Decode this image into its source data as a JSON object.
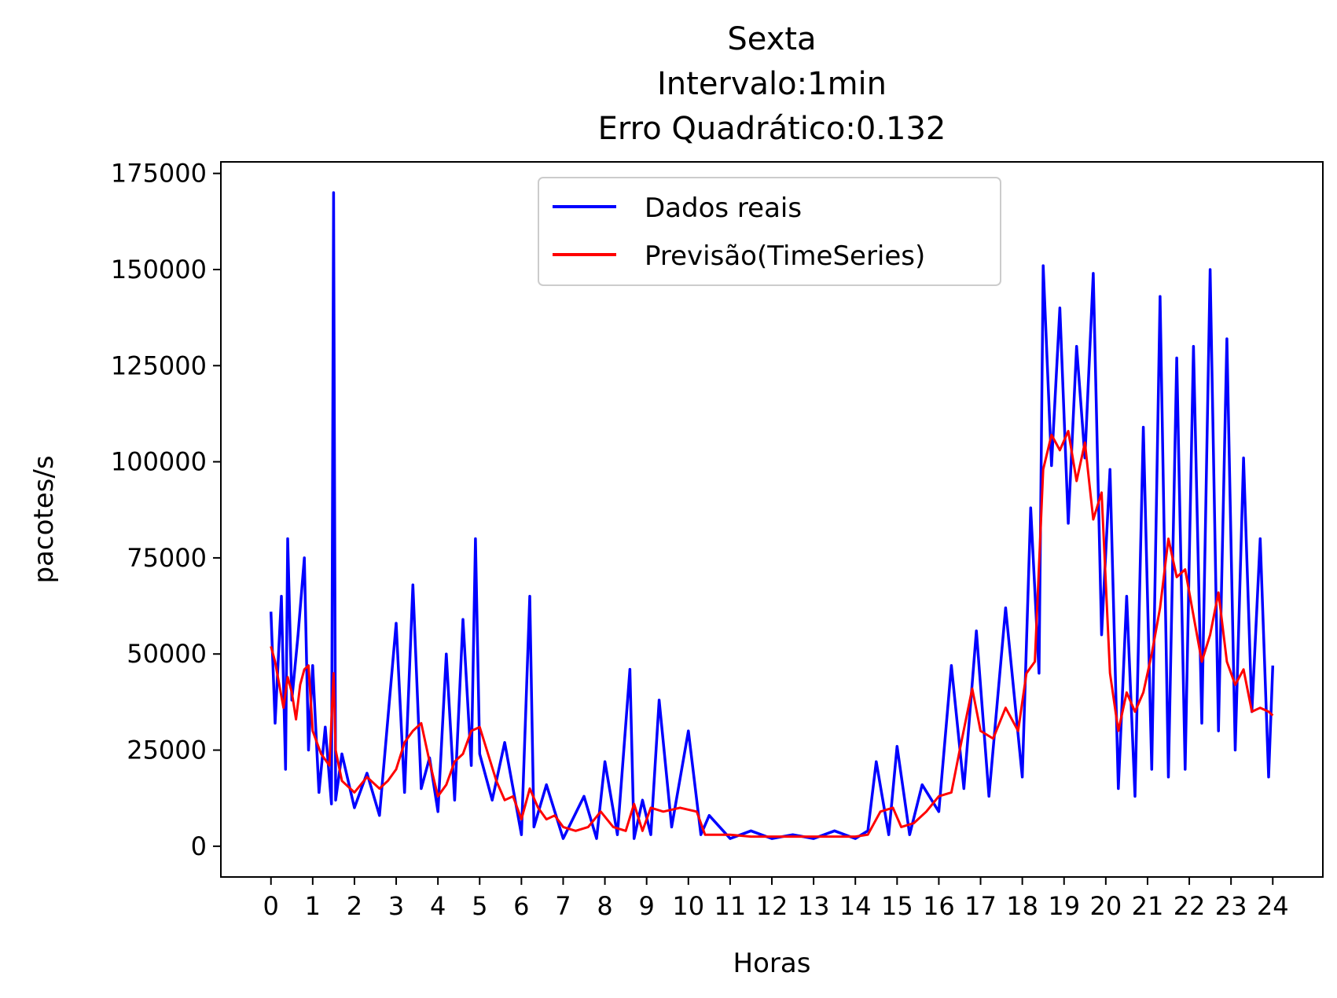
{
  "chart_data": {
    "type": "line",
    "title_lines": [
      "Sexta",
      "Intervalo:1min",
      "Erro Quadrático:0.132"
    ],
    "xlabel": "Horas",
    "ylabel": "pacotes/s",
    "xlim": [
      -1.2,
      25.2
    ],
    "ylim": [
      -8000,
      178000
    ],
    "x_ticks": [
      "0",
      "1",
      "2",
      "3",
      "4",
      "5",
      "6",
      "7",
      "8",
      "9",
      "10",
      "11",
      "12",
      "13",
      "14",
      "15",
      "16",
      "17",
      "18",
      "19",
      "20",
      "21",
      "22",
      "23",
      "24"
    ],
    "y_ticks": [
      0,
      25000,
      50000,
      75000,
      100000,
      125000,
      150000,
      175000
    ],
    "y_tick_labels": [
      "0",
      "25000",
      "50000",
      "75000",
      "100000",
      "125000",
      "150000",
      "175000"
    ],
    "grid": false,
    "legend_position": "top-center",
    "series": [
      {
        "name": "Dados reais",
        "color": "#0000ff",
        "x": [
          0,
          0.1,
          0.25,
          0.35,
          0.4,
          0.5,
          0.65,
          0.8,
          0.9,
          1.0,
          1.15,
          1.3,
          1.45,
          1.5,
          1.55,
          1.7,
          2.0,
          2.3,
          2.6,
          3.0,
          3.2,
          3.4,
          3.6,
          3.8,
          4.0,
          4.2,
          4.4,
          4.6,
          4.8,
          4.9,
          5.0,
          5.3,
          5.6,
          6.0,
          6.2,
          6.3,
          6.6,
          7.0,
          7.5,
          7.8,
          8.0,
          8.3,
          8.6,
          8.7,
          8.9,
          9.1,
          9.3,
          9.6,
          10.0,
          10.3,
          10.5,
          11.0,
          11.5,
          12.0,
          12.5,
          13.0,
          13.5,
          14.0,
          14.3,
          14.5,
          14.8,
          15.0,
          15.3,
          15.6,
          16.0,
          16.3,
          16.6,
          16.9,
          17.2,
          17.6,
          18.0,
          18.2,
          18.4,
          18.5,
          18.7,
          18.9,
          19.1,
          19.3,
          19.5,
          19.7,
          19.9,
          20.1,
          20.3,
          20.5,
          20.7,
          20.9,
          21.1,
          21.3,
          21.5,
          21.7,
          21.9,
          22.1,
          22.3,
          22.5,
          22.7,
          22.9,
          23.1,
          23.3,
          23.5,
          23.7,
          23.9,
          24.0
        ],
        "y": [
          61000,
          32000,
          65000,
          20000,
          80000,
          38000,
          55000,
          75000,
          25000,
          47000,
          14000,
          31000,
          11000,
          170000,
          12000,
          24000,
          10000,
          19000,
          8000,
          58000,
          14000,
          68000,
          15000,
          23000,
          9000,
          50000,
          12000,
          59000,
          21000,
          80000,
          24000,
          12000,
          27000,
          3000,
          65000,
          5000,
          16000,
          2000,
          13000,
          2000,
          22000,
          3000,
          46000,
          2000,
          12000,
          3000,
          38000,
          5000,
          30000,
          3000,
          8000,
          2000,
          4000,
          2000,
          3000,
          2000,
          4000,
          2000,
          4000,
          22000,
          3000,
          26000,
          3000,
          16000,
          9000,
          47000,
          15000,
          56000,
          13000,
          62000,
          18000,
          88000,
          45000,
          151000,
          99000,
          140000,
          84000,
          130000,
          101000,
          149000,
          55000,
          98000,
          15000,
          65000,
          13000,
          109000,
          20000,
          143000,
          18000,
          127000,
          20000,
          130000,
          32000,
          150000,
          30000,
          132000,
          25000,
          101000,
          35000,
          80000,
          18000,
          47000
        ]
      },
      {
        "name": "Previsão(TimeSeries)",
        "color": "#ff0000",
        "x": [
          0,
          0.1,
          0.2,
          0.3,
          0.4,
          0.5,
          0.6,
          0.7,
          0.8,
          0.9,
          1.0,
          1.2,
          1.4,
          1.5,
          1.55,
          1.7,
          2.0,
          2.3,
          2.6,
          2.8,
          3.0,
          3.2,
          3.4,
          3.6,
          3.8,
          4.0,
          4.2,
          4.4,
          4.6,
          4.8,
          5.0,
          5.2,
          5.4,
          5.6,
          5.8,
          6.0,
          6.2,
          6.4,
          6.6,
          6.8,
          7.0,
          7.3,
          7.6,
          7.9,
          8.2,
          8.5,
          8.7,
          8.9,
          9.1,
          9.4,
          9.8,
          10.2,
          10.4,
          10.6,
          11.0,
          11.5,
          12.0,
          12.5,
          13.0,
          13.5,
          14.0,
          14.3,
          14.6,
          14.9,
          15.1,
          15.4,
          15.7,
          16.0,
          16.3,
          16.5,
          16.8,
          17.0,
          17.3,
          17.6,
          17.9,
          18.1,
          18.3,
          18.5,
          18.7,
          18.9,
          19.1,
          19.3,
          19.5,
          19.7,
          19.9,
          20.1,
          20.3,
          20.5,
          20.7,
          20.9,
          21.1,
          21.3,
          21.5,
          21.7,
          21.9,
          22.1,
          22.3,
          22.5,
          22.7,
          22.9,
          23.1,
          23.3,
          23.5,
          23.7,
          23.9,
          24.0
        ],
        "y": [
          52000,
          48000,
          42000,
          36000,
          44000,
          40000,
          33000,
          42000,
          46000,
          47000,
          30000,
          24000,
          21000,
          45000,
          25000,
          17000,
          14000,
          18000,
          15000,
          17000,
          20000,
          27000,
          30000,
          32000,
          22000,
          13000,
          16000,
          22000,
          24000,
          30000,
          31000,
          24000,
          17000,
          12000,
          13000,
          7000,
          15000,
          10000,
          7000,
          8000,
          5000,
          4000,
          5000,
          9000,
          5000,
          4000,
          11000,
          4000,
          10000,
          9000,
          10000,
          9000,
          3000,
          3000,
          3000,
          2500,
          2500,
          2500,
          2500,
          2500,
          2500,
          3000,
          9000,
          10000,
          5000,
          6000,
          9000,
          13000,
          14000,
          25000,
          41000,
          30000,
          28000,
          36000,
          30000,
          45000,
          48000,
          98000,
          107000,
          103000,
          108000,
          95000,
          105000,
          85000,
          92000,
          45000,
          30000,
          40000,
          35000,
          40000,
          50000,
          62000,
          80000,
          70000,
          72000,
          60000,
          48000,
          55000,
          66000,
          48000,
          42000,
          46000,
          35000,
          36000,
          35000,
          34000
        ]
      }
    ]
  }
}
